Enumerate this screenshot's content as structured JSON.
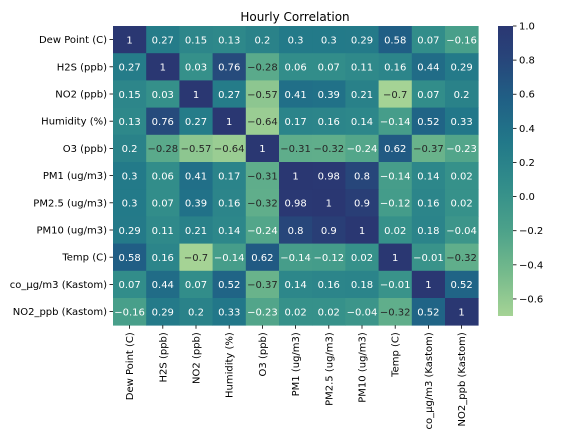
{
  "chart_data": {
    "type": "heatmap",
    "title": "Hourly Correlation",
    "labels": [
      "Dew Point (C)",
      "H2S (ppb)",
      "NO2 (ppb)",
      "Humidity (%)",
      "O3 (ppb)",
      "PM1 (ug/m3)",
      "PM2.5 (ug/m3)",
      "PM10 (ug/m3)",
      "Temp (C)",
      "co_µg/m3 (Kastom)",
      "NO2_ppb (Kastom)"
    ],
    "values": [
      [
        1,
        0.27,
        0.15,
        0.13,
        0.2,
        0.3,
        0.3,
        0.29,
        0.58,
        0.07,
        -0.16
      ],
      [
        0.27,
        1,
        0.03,
        0.76,
        -0.28,
        0.06,
        0.07,
        0.11,
        0.16,
        0.44,
        0.29
      ],
      [
        0.15,
        0.03,
        1,
        0.27,
        -0.57,
        0.41,
        0.39,
        0.21,
        -0.7,
        0.07,
        0.2
      ],
      [
        0.13,
        0.76,
        0.27,
        1,
        -0.64,
        0.17,
        0.16,
        0.14,
        -0.14,
        0.52,
        0.33
      ],
      [
        0.2,
        -0.28,
        -0.57,
        -0.64,
        1,
        -0.31,
        -0.32,
        -0.24,
        0.62,
        -0.37,
        -0.23
      ],
      [
        0.3,
        0.06,
        0.41,
        0.17,
        -0.31,
        1,
        0.98,
        0.8,
        -0.14,
        0.14,
        0.02
      ],
      [
        0.3,
        0.07,
        0.39,
        0.16,
        -0.32,
        0.98,
        1,
        0.9,
        -0.12,
        0.16,
        0.02
      ],
      [
        0.29,
        0.11,
        0.21,
        0.14,
        -0.24,
        0.8,
        0.9,
        1,
        0.02,
        0.18,
        -0.04
      ],
      [
        0.58,
        0.16,
        -0.7,
        -0.14,
        0.62,
        -0.14,
        -0.12,
        0.02,
        1,
        -0.01,
        -0.32
      ],
      [
        0.07,
        0.44,
        0.07,
        0.52,
        -0.37,
        0.14,
        0.16,
        0.18,
        -0.01,
        1,
        0.52
      ],
      [
        -0.16,
        0.29,
        0.2,
        0.33,
        -0.23,
        0.02,
        0.02,
        -0.04,
        -0.32,
        0.52,
        1
      ]
    ],
    "colorbar": {
      "range": [
        -0.7,
        1.0
      ],
      "ticks": [
        "1.0",
        "0.8",
        "0.6",
        "0.4",
        "0.2",
        "0.0",
        "−0.2",
        "−0.4",
        "−0.6"
      ],
      "tick_values": [
        1.0,
        0.8,
        0.6,
        0.4,
        0.2,
        0.0,
        -0.2,
        -0.4,
        -0.6
      ],
      "colormap": "crest",
      "color_low": "#a5d395",
      "color_high": "#2a3772"
    },
    "legend": "right"
  }
}
